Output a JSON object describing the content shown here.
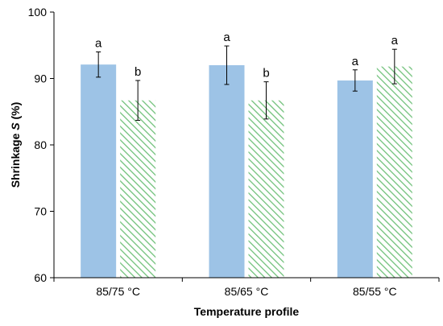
{
  "chart_data": {
    "type": "bar",
    "xlabel": "Temperature profile",
    "ylabel": "Shrinkage S (%)",
    "ylabel_parts": [
      "Shrinkage ",
      "S",
      " (%)"
    ],
    "ylim": [
      60,
      100
    ],
    "yticks": [
      60,
      70,
      80,
      90,
      100
    ],
    "grid": false,
    "legend": "none",
    "categories": [
      "85/75 °C",
      "85/65 °C",
      "85/55 °C"
    ],
    "series": [
      {
        "style": "solid",
        "color": "#9dc3e6",
        "values": [
          92.1,
          92.0,
          89.7
        ],
        "error": [
          1.9,
          2.9,
          1.6
        ],
        "labels": [
          "a",
          "a",
          "a"
        ]
      },
      {
        "style": "hatched",
        "color": "#70c17a",
        "values": [
          86.7,
          86.7,
          91.8
        ],
        "error": [
          3.0,
          2.8,
          2.6
        ],
        "labels": [
          "b",
          "b",
          "a"
        ]
      }
    ]
  }
}
